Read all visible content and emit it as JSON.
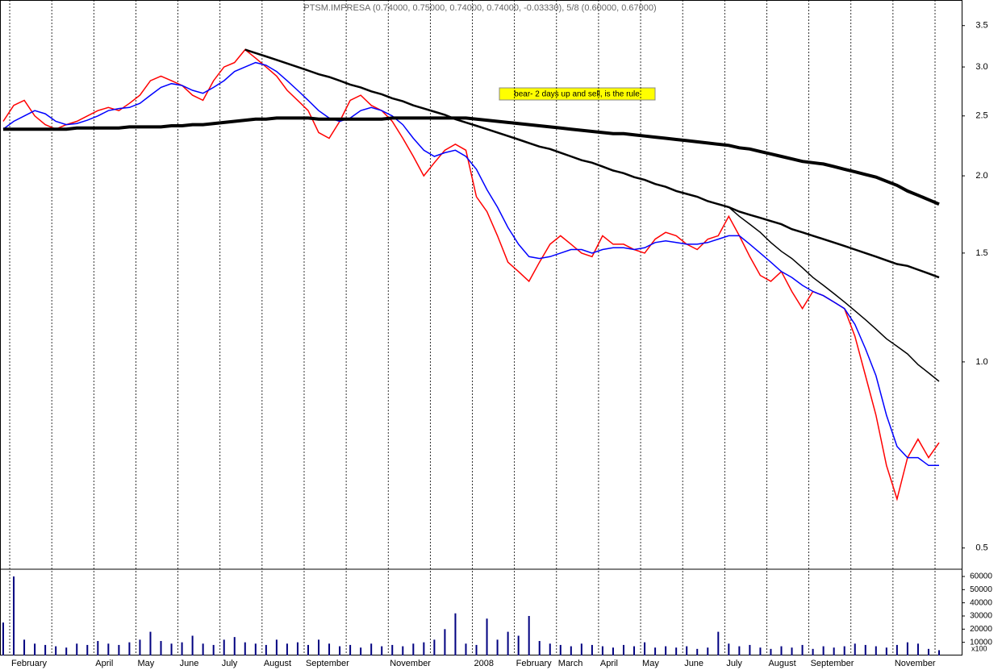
{
  "chart_data": {
    "type": "line",
    "title": "PTSM.IMPRESA (0.74000, 0.75000, 0.74000, 0.74000, -0.03330), 5/8 (0.60000, 0.67000)",
    "annotation": "bear- 2 days up and sell, is the rule",
    "log_scale": true,
    "ylim": [
      0.462,
      3.85
    ],
    "yticks": [
      {
        "value": 0.5,
        "label": "0.5"
      },
      {
        "value": 1,
        "label": "1.0"
      },
      1.5,
      {
        "value": 2,
        "label": "2.0"
      },
      2.5,
      {
        "value": 3,
        "label": "3.0"
      },
      3.5
    ],
    "categories": [
      null,
      "February",
      null,
      null,
      null,
      null,
      null,
      null,
      null,
      "April",
      null,
      null,
      null,
      "May",
      null,
      null,
      null,
      "June",
      null,
      null,
      null,
      "July",
      null,
      null,
      null,
      "August",
      null,
      null,
      null,
      "September",
      null,
      null,
      null,
      null,
      null,
      null,
      null,
      "November",
      null,
      null,
      null,
      null,
      null,
      null,
      null,
      "2008",
      null,
      null,
      null,
      "February",
      null,
      null,
      null,
      "March",
      null,
      null,
      null,
      "April",
      null,
      null,
      null,
      "May",
      null,
      null,
      null,
      "June",
      null,
      null,
      null,
      "July",
      null,
      null,
      null,
      "August",
      null,
      null,
      null,
      "September",
      null,
      null,
      null,
      null,
      null,
      null,
      null,
      "November",
      null,
      null,
      null,
      null
    ],
    "series": [
      {
        "color": "#ff0000",
        "width": 1.5,
        "values": [
          2.45,
          2.6,
          2.65,
          2.5,
          2.42,
          2.38,
          2.42,
          2.45,
          2.5,
          2.55,
          2.58,
          2.55,
          2.62,
          2.7,
          2.85,
          2.9,
          2.85,
          2.8,
          2.7,
          2.65,
          2.85,
          3.0,
          3.05,
          3.2,
          3.1,
          3.0,
          2.9,
          2.75,
          2.65,
          2.55,
          2.35,
          2.3,
          2.45,
          2.65,
          2.7,
          2.6,
          2.55,
          2.45,
          2.3,
          2.15,
          2.0,
          2.1,
          2.2,
          2.25,
          2.2,
          1.85,
          1.75,
          1.6,
          1.45,
          1.4,
          1.35,
          1.45,
          1.55,
          1.6,
          1.55,
          1.5,
          1.48,
          1.6,
          1.55,
          1.55,
          1.52,
          1.5,
          1.58,
          1.62,
          1.6,
          1.55,
          1.52,
          1.58,
          1.6,
          1.72,
          1.6,
          1.48,
          1.38,
          1.35,
          1.4,
          1.3,
          1.22,
          1.3,
          1.28,
          1.25,
          1.22,
          1.1,
          0.95,
          0.82,
          0.68,
          0.6,
          0.7,
          0.75,
          0.7,
          0.74
        ]
      },
      {
        "color": "#0000ff",
        "width": 1.5,
        "values": [
          2.38,
          2.45,
          2.5,
          2.55,
          2.52,
          2.45,
          2.42,
          2.43,
          2.46,
          2.5,
          2.55,
          2.57,
          2.58,
          2.62,
          2.7,
          2.78,
          2.82,
          2.8,
          2.75,
          2.72,
          2.78,
          2.85,
          2.95,
          3.0,
          3.05,
          3.02,
          2.95,
          2.85,
          2.75,
          2.65,
          2.55,
          2.48,
          2.45,
          2.48,
          2.55,
          2.58,
          2.55,
          2.5,
          2.42,
          2.3,
          2.2,
          2.15,
          2.18,
          2.2,
          2.15,
          2.05,
          1.9,
          1.78,
          1.65,
          1.55,
          1.48,
          1.47,
          1.48,
          1.5,
          1.52,
          1.52,
          1.5,
          1.52,
          1.53,
          1.53,
          1.52,
          1.53,
          1.56,
          1.57,
          1.56,
          1.55,
          1.55,
          1.56,
          1.58,
          1.6,
          1.6,
          1.55,
          1.5,
          1.45,
          1.4,
          1.37,
          1.33,
          1.3,
          1.28,
          1.25,
          1.22,
          1.15,
          1.05,
          0.95,
          0.82,
          0.73,
          0.7,
          0.7,
          0.68,
          0.68
        ]
      },
      {
        "color": "#000000",
        "width": 4,
        "values": [
          2.38,
          2.38,
          2.38,
          2.38,
          2.38,
          2.38,
          2.38,
          2.39,
          2.39,
          2.39,
          2.39,
          2.39,
          2.4,
          2.4,
          2.4,
          2.4,
          2.41,
          2.41,
          2.42,
          2.42,
          2.43,
          2.44,
          2.45,
          2.46,
          2.47,
          2.47,
          2.48,
          2.48,
          2.48,
          2.48,
          2.47,
          2.47,
          2.47,
          2.47,
          2.47,
          2.47,
          2.47,
          2.48,
          2.48,
          2.48,
          2.48,
          2.48,
          2.48,
          2.48,
          2.48,
          2.47,
          2.46,
          2.45,
          2.44,
          2.43,
          2.42,
          2.41,
          2.4,
          2.39,
          2.38,
          2.37,
          2.36,
          2.35,
          2.34,
          2.34,
          2.33,
          2.32,
          2.31,
          2.3,
          2.29,
          2.28,
          2.27,
          2.26,
          2.25,
          2.24,
          2.22,
          2.21,
          2.19,
          2.17,
          2.15,
          2.13,
          2.11,
          2.1,
          2.09,
          2.07,
          2.05,
          2.03,
          2.01,
          1.99,
          1.96,
          1.93,
          1.89,
          1.86,
          1.83,
          1.8
        ]
      },
      {
        "color": "#000000",
        "width": 2.5,
        "values": [
          null,
          null,
          null,
          null,
          null,
          null,
          null,
          null,
          null,
          null,
          null,
          null,
          null,
          null,
          null,
          null,
          null,
          null,
          null,
          null,
          null,
          null,
          null,
          3.2,
          3.16,
          3.12,
          3.08,
          3.04,
          3.0,
          2.96,
          2.92,
          2.89,
          2.85,
          2.81,
          2.78,
          2.74,
          2.71,
          2.67,
          2.64,
          2.6,
          2.57,
          2.54,
          2.51,
          2.47,
          2.44,
          2.41,
          2.38,
          2.35,
          2.32,
          2.29,
          2.26,
          2.23,
          2.21,
          2.18,
          2.15,
          2.12,
          2.1,
          2.07,
          2.04,
          2.02,
          1.99,
          1.97,
          1.94,
          1.92,
          1.89,
          1.87,
          1.85,
          1.82,
          1.8,
          1.78,
          1.75,
          1.73,
          1.71,
          1.69,
          1.67,
          1.64,
          1.62,
          1.6,
          1.58,
          1.56,
          1.54,
          1.52,
          1.5,
          1.48,
          1.46,
          1.44,
          1.43,
          1.41,
          1.39,
          1.37
        ]
      },
      {
        "color": "#000000",
        "width": 1.5,
        "values": [
          null,
          null,
          null,
          null,
          null,
          null,
          null,
          null,
          null,
          null,
          null,
          null,
          null,
          null,
          null,
          null,
          null,
          null,
          null,
          null,
          null,
          null,
          null,
          null,
          null,
          null,
          null,
          null,
          null,
          null,
          null,
          null,
          null,
          null,
          null,
          null,
          null,
          null,
          null,
          null,
          null,
          null,
          null,
          null,
          null,
          null,
          null,
          null,
          null,
          null,
          null,
          null,
          null,
          null,
          null,
          null,
          null,
          null,
          null,
          null,
          null,
          null,
          null,
          null,
          null,
          null,
          null,
          null,
          null,
          1.78,
          1.72,
          1.67,
          1.62,
          1.56,
          1.51,
          1.47,
          1.42,
          1.37,
          1.33,
          1.29,
          1.25,
          1.21,
          1.17,
          1.13,
          1.09,
          1.06,
          1.03,
          0.99,
          0.96,
          0.93
        ]
      }
    ],
    "volume": {
      "color": "#000080",
      "unit_label": "x100",
      "ylim": [
        0,
        65500
      ],
      "yticks": [
        10000,
        20000,
        30000,
        40000,
        50000,
        60000
      ],
      "values": [
        25000,
        60000,
        12000,
        9000,
        8000,
        7000,
        6000,
        9000,
        8000,
        11000,
        9000,
        8000,
        10000,
        12000,
        18000,
        11000,
        9000,
        10000,
        15000,
        9000,
        8000,
        12000,
        14000,
        10000,
        9000,
        8000,
        12000,
        9000,
        10000,
        8000,
        12000,
        9000,
        7000,
        8000,
        6000,
        9000,
        7000,
        8000,
        7000,
        9000,
        10000,
        12000,
        20000,
        32000,
        9000,
        8000,
        28000,
        12000,
        18000,
        15000,
        30000,
        11000,
        9000,
        8000,
        7000,
        9000,
        8000,
        7000,
        6000,
        8000,
        7000,
        10000,
        6000,
        7000,
        6000,
        7000,
        5000,
        6000,
        18000,
        9000,
        7000,
        8000,
        6000,
        5000,
        7000,
        6000,
        8000,
        5000,
        7000,
        6000,
        7000,
        9000,
        8000,
        7000,
        6000,
        8000,
        10000,
        9000,
        5000,
        4000
      ]
    }
  }
}
